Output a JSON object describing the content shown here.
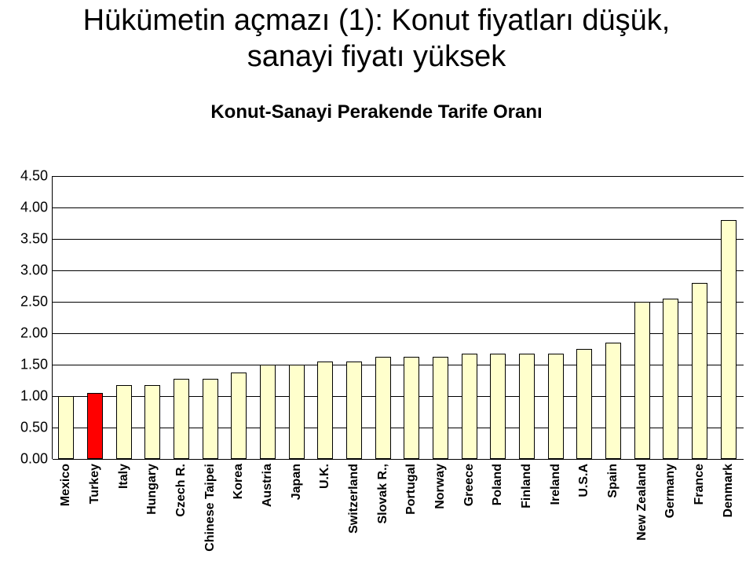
{
  "title": {
    "line1": "Hükümetin açmazı (1): Konut fiyatları düşük,",
    "line2": "sanayi fiyatı yüksek",
    "fontsize": 38
  },
  "chart": {
    "type": "bar",
    "title": "Konut-Sanayi Perakende Tarife Oranı",
    "title_fontsize": 24,
    "ylim": [
      0.0,
      4.5
    ],
    "ytick_step": 0.5,
    "yticks": [
      "0.00",
      "0.50",
      "1.00",
      "1.50",
      "2.00",
      "2.50",
      "3.00",
      "3.50",
      "4.00",
      "4.50"
    ],
    "grid_color": "#000000",
    "background_color": "#ffffff",
    "bar_default_fill": "#ffffcc",
    "bar_highlight_fill": "#ff0000",
    "bar_border": "#000000",
    "bar_width_ratio": 0.55,
    "label_fontsize": 16,
    "label_fontweight": "700",
    "categories": [
      "Mexico",
      "Turkey",
      "Italy",
      "Hungary",
      "Czech R.",
      "Chinese Taipei",
      "Korea",
      "Austria",
      "Japan",
      "U.K.",
      "Switzerland",
      "Slovak R.,",
      "Portugal",
      "Norway",
      "Greece",
      "Poland",
      "Finland",
      "Ireland",
      "U.S.A",
      "Spain",
      "New Zealand",
      "Germany",
      "France",
      "Denmark"
    ],
    "values": [
      1.0,
      1.05,
      1.18,
      1.18,
      1.28,
      1.28,
      1.37,
      1.5,
      1.5,
      1.55,
      1.55,
      1.62,
      1.62,
      1.62,
      1.68,
      1.68,
      1.68,
      1.68,
      1.75,
      1.85,
      2.5,
      2.55,
      2.8,
      3.8
    ],
    "highlight_index": 1
  }
}
